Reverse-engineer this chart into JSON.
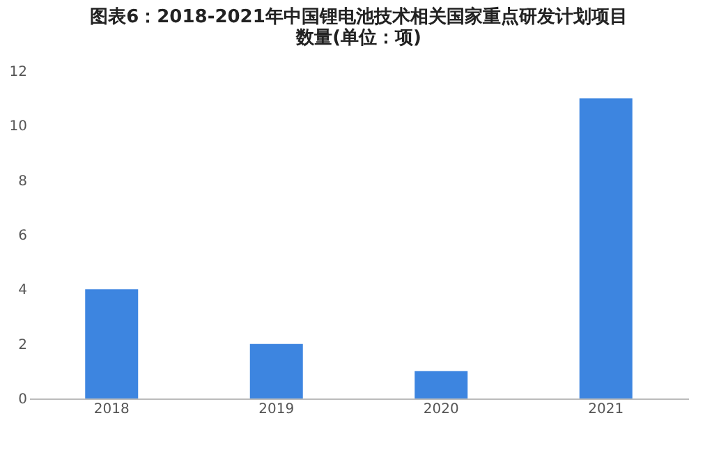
{
  "chart_data": {
    "type": "bar",
    "title": "图表6：2018-2021年中国锂电池技术相关国家重点研发计划项目数量(单位：项)",
    "categories": [
      "2018",
      "2019",
      "2020",
      "2021"
    ],
    "values": [
      4,
      2,
      1,
      11
    ],
    "color": "#3d85e0",
    "ylim": [
      0,
      12
    ],
    "yticks": [
      0,
      2,
      4,
      6,
      8,
      10,
      12
    ],
    "grid": false
  }
}
